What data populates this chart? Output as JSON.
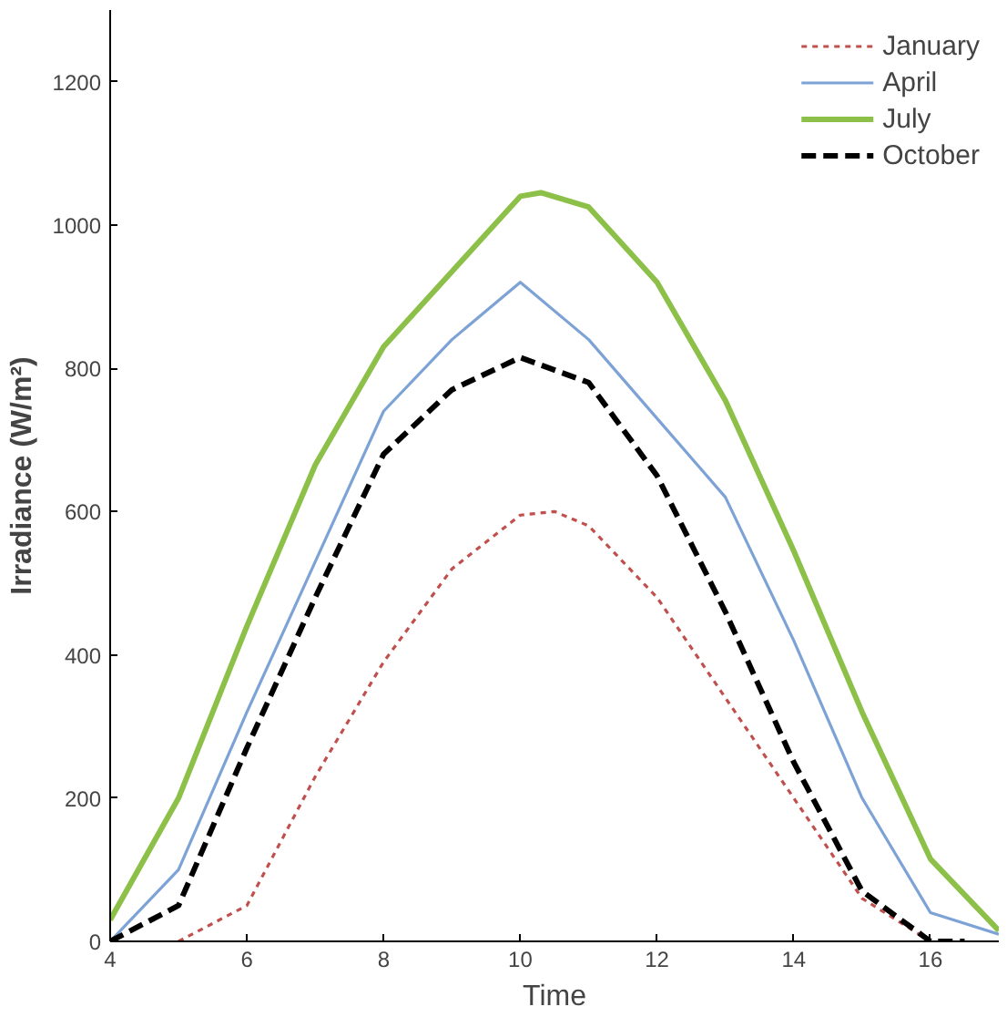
{
  "chart_data": {
    "type": "line",
    "xlabel": "Time",
    "ylabel": "Irradiance (W/m²)",
    "xlim": [
      4,
      17
    ],
    "ylim": [
      0,
      1300
    ],
    "xticks": [
      4,
      6,
      8,
      10,
      12,
      14,
      16
    ],
    "yticks": [
      0,
      200,
      400,
      600,
      800,
      1000,
      1200
    ],
    "grid": false,
    "legend": "top right",
    "marker": "none",
    "series": [
      {
        "name": "January",
        "color": "#c0504d",
        "line_style": "dotted",
        "x": [
          5,
          6,
          7,
          8,
          9,
          10,
          10.5,
          11,
          12,
          13,
          14,
          15,
          16
        ],
        "values": [
          0,
          50,
          230,
          390,
          520,
          595,
          600,
          580,
          480,
          340,
          200,
          60,
          0
        ]
      },
      {
        "name": "April",
        "color": "#7da2d6",
        "line_style": "solid",
        "x": [
          4,
          5,
          6,
          7,
          8,
          9,
          10,
          11,
          12,
          13,
          14,
          15,
          16,
          17
        ],
        "values": [
          0,
          100,
          320,
          530,
          740,
          840,
          920,
          840,
          730,
          620,
          420,
          200,
          40,
          10
        ]
      },
      {
        "name": "July",
        "color": "#8cc048",
        "line_style": "solid",
        "x": [
          4,
          5,
          6,
          7,
          8,
          9,
          10,
          10.3,
          11,
          12,
          13,
          14,
          15,
          16,
          17
        ],
        "values": [
          30,
          200,
          440,
          665,
          830,
          935,
          1040,
          1045,
          1025,
          920,
          755,
          545,
          320,
          115,
          15
        ]
      },
      {
        "name": "October",
        "color": "#000000",
        "line_style": "dashed",
        "x": [
          4,
          5,
          6,
          7,
          8,
          9,
          10,
          11,
          12,
          13,
          14,
          15,
          16,
          16.5
        ],
        "values": [
          0,
          50,
          270,
          480,
          680,
          770,
          815,
          780,
          650,
          460,
          250,
          70,
          0,
          0
        ]
      }
    ]
  }
}
